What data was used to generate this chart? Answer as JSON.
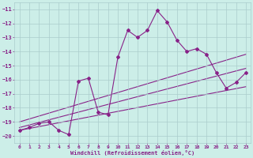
{
  "xlabel": "Windchill (Refroidissement éolien,°C)",
  "background_color": "#cceee8",
  "grid_color": "#aacccc",
  "line_color": "#882288",
  "xlim": [
    -0.5,
    23.5
  ],
  "ylim": [
    -20.5,
    -10.5
  ],
  "xticks": [
    0,
    1,
    2,
    3,
    4,
    5,
    6,
    7,
    8,
    9,
    10,
    11,
    12,
    13,
    14,
    15,
    16,
    17,
    18,
    19,
    20,
    21,
    22,
    23
  ],
  "yticks": [
    -20,
    -19,
    -18,
    -17,
    -16,
    -15,
    -14,
    -13,
    -12,
    -11
  ],
  "series1_x": [
    0,
    1,
    2,
    3,
    4,
    5,
    6,
    7,
    8,
    9,
    10,
    11,
    12,
    13,
    14,
    15,
    16,
    17,
    18,
    19,
    20,
    21,
    22,
    23
  ],
  "series1_y": [
    -19.6,
    -19.4,
    -19.1,
    -19.0,
    -19.6,
    -19.9,
    -16.1,
    -15.9,
    -18.3,
    -18.5,
    -14.4,
    -12.5,
    -13.0,
    -12.5,
    -11.1,
    -11.9,
    -13.2,
    -14.0,
    -13.8,
    -14.2,
    -15.5,
    -16.6,
    -16.2,
    -15.5
  ],
  "line1_x": [
    0,
    23
  ],
  "line1_y": [
    -19.4,
    -15.2
  ],
  "line2_x": [
    0,
    23
  ],
  "line2_y": [
    -19.6,
    -16.5
  ],
  "line3_x": [
    0,
    23
  ],
  "line3_y": [
    -19.0,
    -14.2
  ]
}
